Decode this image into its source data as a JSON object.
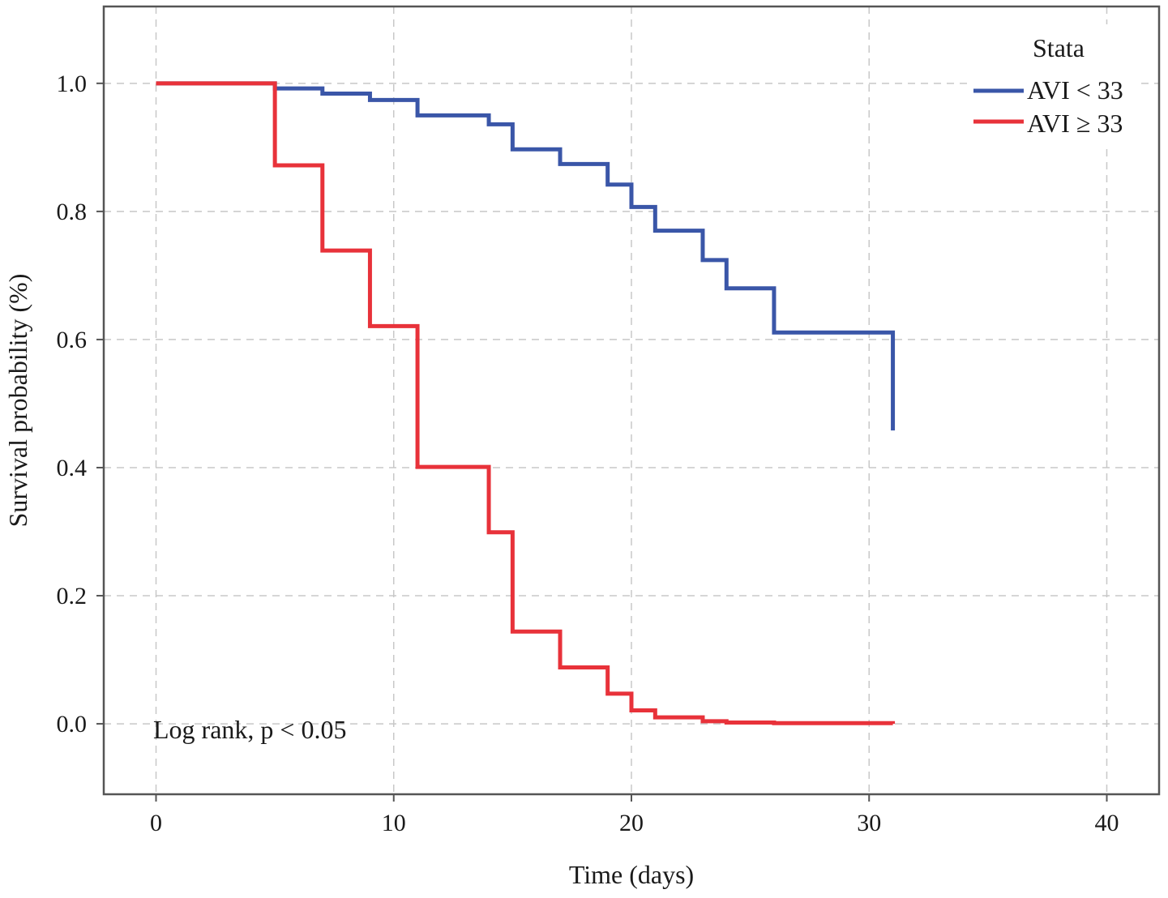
{
  "chart_data": {
    "type": "line",
    "subtype": "kaplan-meier-step",
    "xlabel": "Time (days)",
    "ylabel": "Survival probability (%)",
    "xlim": [
      -2.2,
      42.2
    ],
    "ylim": [
      -0.11,
      1.12
    ],
    "x_ticks": [
      0,
      10,
      20,
      30,
      40
    ],
    "x_tick_labels": [
      "0",
      "10",
      "20",
      "30",
      "40"
    ],
    "y_ticks": [
      0.0,
      0.2,
      0.4,
      0.6,
      0.8,
      1.0
    ],
    "y_tick_labels": [
      "0.0",
      "0.2",
      "0.4",
      "0.6",
      "0.8",
      "1.0"
    ],
    "grid": true,
    "legend": {
      "title": "Stata",
      "position": "top-right"
    },
    "annotation": "Log rank, p < 0.05",
    "series": [
      {
        "name": "AVI < 33",
        "color": "#3a56a8",
        "x": [
          0,
          5,
          7,
          9,
          11,
          14,
          15,
          17,
          19,
          20,
          21,
          23,
          24,
          26,
          31,
          31
        ],
        "y": [
          1.0,
          0.992,
          0.984,
          0.974,
          0.95,
          0.936,
          0.897,
          0.874,
          0.842,
          0.807,
          0.77,
          0.724,
          0.68,
          0.611,
          0.611,
          0.458
        ]
      },
      {
        "name": "AVI ≥ 33",
        "color": "#e8323a",
        "x": [
          0,
          5,
          7,
          9,
          11,
          14,
          15,
          17,
          19,
          20,
          21,
          23,
          24,
          26,
          31
        ],
        "y": [
          1.0,
          0.872,
          0.739,
          0.621,
          0.401,
          0.299,
          0.144,
          0.088,
          0.047,
          0.021,
          0.01,
          0.004,
          0.002,
          0.001,
          0.0
        ]
      }
    ]
  }
}
